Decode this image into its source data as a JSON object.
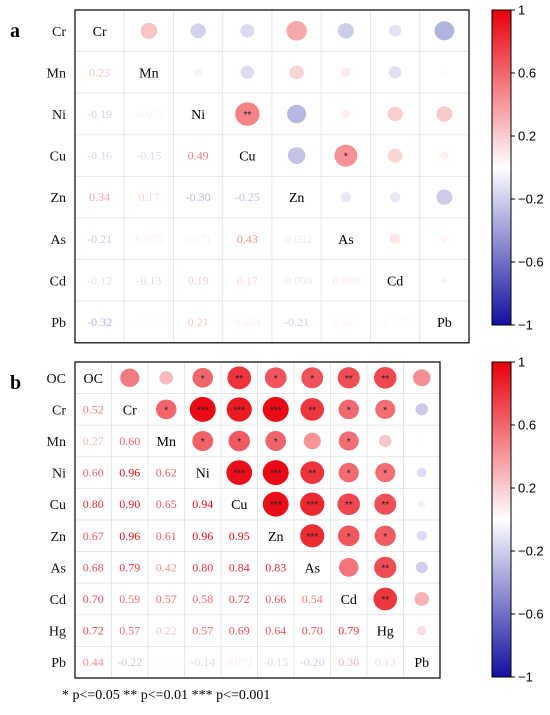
{
  "footnote": "* p<=0.05  ** p<=0.01  *** p<=0.001",
  "colors": {
    "positive": "#e8000b",
    "negative": "#1010a0",
    "neutral": "#ffffff"
  },
  "chart_data": [
    {
      "type": "heatmap",
      "panel": "a",
      "variables": [
        "Cr",
        "Mn",
        "Ni",
        "Cu",
        "Zn",
        "As",
        "Cd",
        "Pb"
      ],
      "lower_values": [
        [
          null,
          null,
          null,
          null,
          null,
          null,
          null,
          null
        ],
        [
          0.23,
          null,
          null,
          null,
          null,
          null,
          null,
          null
        ],
        [
          -0.19,
          -0.052,
          null,
          null,
          null,
          null,
          null,
          null
        ],
        [
          -0.16,
          -0.15,
          0.49,
          null,
          null,
          null,
          null,
          null
        ],
        [
          0.34,
          0.17,
          -0.3,
          -0.25,
          null,
          null,
          null,
          null
        ],
        [
          -0.21,
          0.076,
          0.071,
          0.43,
          -0.092,
          null,
          null,
          null
        ],
        [
          -0.12,
          -0.13,
          0.19,
          0.17,
          -0.09,
          0.098,
          null,
          null
        ],
        [
          -0.32,
          -0.016,
          0.21,
          0.064,
          -0.21,
          0.043,
          -0.037,
          null
        ]
      ],
      "lower_display": [
        [
          null,
          null,
          null,
          null,
          null,
          null,
          null,
          null
        ],
        [
          "0.23",
          null,
          null,
          null,
          null,
          null,
          null,
          null
        ],
        [
          "-0.19",
          "-0.052",
          null,
          null,
          null,
          null,
          null,
          null
        ],
        [
          "-0.16",
          "-0.15",
          "0.49",
          null,
          null,
          null,
          null,
          null
        ],
        [
          "0.34",
          "0.17",
          "-0.30",
          "-0.25",
          null,
          null,
          null,
          null
        ],
        [
          "-0.21",
          "0.076",
          "0.071",
          "0.43",
          "-0.092",
          null,
          null,
          null
        ],
        [
          "-0.12",
          "-0.13",
          "0.19",
          "0.17",
          "-0.090",
          "0.098",
          null,
          null
        ],
        [
          "-0.32",
          "-0.016",
          "0.21",
          "0.064",
          "-0.21",
          "0.043",
          "-0.037",
          null
        ]
      ],
      "significance": [
        [
          "",
          "",
          "",
          "",
          "",
          "",
          "",
          ""
        ],
        [
          "",
          "",
          "",
          "",
          "",
          "",
          "",
          ""
        ],
        [
          "",
          "",
          "",
          "**",
          "",
          "",
          "",
          ""
        ],
        [
          "",
          "",
          "",
          "",
          "",
          "*",
          "",
          ""
        ],
        [
          "",
          "",
          "",
          "",
          "",
          "",
          "",
          ""
        ],
        [
          "",
          "",
          "",
          "",
          "",
          "",
          "",
          ""
        ],
        [
          "",
          "",
          "",
          "",
          "",
          "",
          "",
          ""
        ],
        [
          "",
          "",
          "",
          "",
          "",
          "",
          "",
          ""
        ]
      ],
      "colorbar": {
        "range": [
          -1,
          1
        ],
        "ticks": [
          "1",
          "0.6",
          "0.2",
          "−0.2",
          "−0.6",
          "−1"
        ]
      }
    },
    {
      "type": "heatmap",
      "panel": "b",
      "variables": [
        "OC",
        "Cr",
        "Mn",
        "Ni",
        "Cu",
        "Zn",
        "As",
        "Cd",
        "Hg",
        "Pb"
      ],
      "lower_values": [
        [
          null,
          null,
          null,
          null,
          null,
          null,
          null,
          null,
          null,
          null
        ],
        [
          0.52,
          null,
          null,
          null,
          null,
          null,
          null,
          null,
          null,
          null
        ],
        [
          0.27,
          0.6,
          null,
          null,
          null,
          null,
          null,
          null,
          null,
          null
        ],
        [
          0.6,
          0.96,
          0.62,
          null,
          null,
          null,
          null,
          null,
          null,
          null
        ],
        [
          0.8,
          0.9,
          0.65,
          0.94,
          null,
          null,
          null,
          null,
          null,
          null
        ],
        [
          0.67,
          0.96,
          0.61,
          0.96,
          0.95,
          null,
          null,
          null,
          null,
          null
        ],
        [
          0.68,
          0.79,
          0.42,
          0.8,
          0.84,
          0.83,
          null,
          null,
          null,
          null
        ],
        [
          0.7,
          0.59,
          0.57,
          0.58,
          0.72,
          0.66,
          0.54,
          null,
          null,
          null
        ],
        [
          0.72,
          0.57,
          0.22,
          0.57,
          0.69,
          0.64,
          0.7,
          0.79,
          null,
          null
        ],
        [
          0.44,
          -0.22,
          0.011,
          -0.14,
          0.072,
          -0.15,
          -0.2,
          0.3,
          0.13,
          null
        ]
      ],
      "lower_display": [
        [
          null,
          null,
          null,
          null,
          null,
          null,
          null,
          null,
          null,
          null
        ],
        [
          "0.52",
          null,
          null,
          null,
          null,
          null,
          null,
          null,
          null,
          null
        ],
        [
          "0.27",
          "0.60",
          null,
          null,
          null,
          null,
          null,
          null,
          null,
          null
        ],
        [
          "0.60",
          "0.96",
          "0.62",
          null,
          null,
          null,
          null,
          null,
          null,
          null
        ],
        [
          "0.80",
          "0.90",
          "0.65",
          "0.94",
          null,
          null,
          null,
          null,
          null,
          null
        ],
        [
          "0.67",
          "0.96",
          "0.61",
          "0.96",
          "0.95",
          null,
          null,
          null,
          null,
          null
        ],
        [
          "0.68",
          "0.79",
          "0.42",
          "0.80",
          "0.84",
          "0.83",
          null,
          null,
          null,
          null
        ],
        [
          "0.70",
          "0.59",
          "0.57",
          "0.58",
          "0.72",
          "0.66",
          "0.54",
          null,
          null,
          null
        ],
        [
          "0.72",
          "0.57",
          "0.22",
          "0.57",
          "0.69",
          "0.64",
          "0.70",
          "0.79",
          null,
          null
        ],
        [
          "0.44",
          "-0.22",
          "0.011",
          "-0.14",
          "0.072",
          "-0.15",
          "-0.20",
          "0.30",
          "0.13",
          null
        ]
      ],
      "significance": [
        [
          "",
          "",
          "",
          "*",
          "**",
          "*",
          "*",
          "**",
          "**",
          ""
        ],
        [
          "",
          "",
          "*",
          "***",
          "***",
          "***",
          "**",
          "*",
          "*",
          ""
        ],
        [
          "",
          "",
          "",
          "*",
          "*",
          "*",
          "",
          "*",
          "",
          ""
        ],
        [
          "",
          "",
          "",
          "",
          "***",
          "***",
          "**",
          "*",
          "*",
          ""
        ],
        [
          "",
          "",
          "",
          "",
          "",
          "***",
          "***",
          "**",
          "**",
          ""
        ],
        [
          "",
          "",
          "",
          "",
          "",
          "",
          "***",
          "*",
          "*",
          ""
        ],
        [
          "",
          "",
          "",
          "",
          "",
          "",
          "",
          "",
          "**",
          ""
        ],
        [
          "",
          "",
          "",
          "",
          "",
          "",
          "",
          "",
          "**",
          ""
        ],
        [
          "",
          "",
          "",
          "",
          "",
          "",
          "",
          "",
          "",
          ""
        ],
        [
          "",
          "",
          "",
          "",
          "",
          "",
          "",
          "",
          "",
          ""
        ]
      ],
      "colorbar": {
        "range": [
          -1,
          1
        ],
        "ticks": [
          "1",
          "0.6",
          "0.2",
          "−0.2",
          "−0.6",
          "−1"
        ]
      }
    }
  ]
}
